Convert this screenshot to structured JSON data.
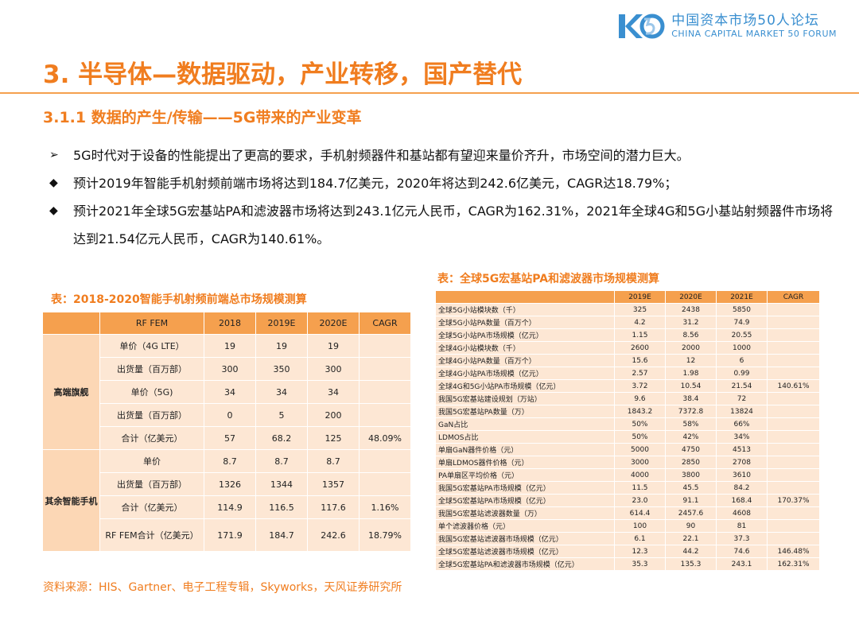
{
  "header": {
    "logo_mark": "K5",
    "logo_zh": "中国资本市场50人论坛",
    "logo_en": "CHINA CAPITAL MARKET 50 FORUM",
    "title": "3. 半导体—数据驱动，产业转移，国产替代",
    "section": "3.1.1 数据的产生/传输——5G带来的产业变革"
  },
  "bullets": [
    {
      "mark": "➢",
      "text": "5G时代对于设备的性能提出了更高的要求，手机射频器件和基站都有望迎来量价齐升，市场空间的潜力巨大。"
    },
    {
      "mark": "◆",
      "text": "预计2019年智能手机射频前端市场将达到184.7亿美元，2020年将达到242.6亿美元，CAGR达18.79%；"
    },
    {
      "mark": "◆",
      "text": "预计2021年全球5G宏基站PA和滤波器市场将达到243.1亿元人民币，CAGR为162.31%，2021年全球4G和5G小基站射频器件市场将达到21.54亿元人民币，CAGR为140.61%。"
    }
  ],
  "table1": {
    "caption": "表：2018-2020智能手机射频前端总市场规模测算",
    "headers": [
      "RF FEM",
      "2018",
      "2019E",
      "2020E",
      "CAGR"
    ],
    "group1": "高端旗舰",
    "group2": "其余智能手机",
    "rows": [
      {
        "label": "单价（4G LTE）",
        "v": [
          "19",
          "19",
          "19"
        ],
        "cagr": ""
      },
      {
        "label": "出货量（百万部）",
        "v": [
          "300",
          "350",
          "300"
        ],
        "cagr": ""
      },
      {
        "label": "单价（5G)",
        "v": [
          "34",
          "34",
          "34"
        ],
        "cagr": ""
      },
      {
        "label": "出货量（百万部）",
        "v": [
          "0",
          "5",
          "200"
        ],
        "cagr": ""
      },
      {
        "label": "合计（亿美元）",
        "v": [
          "57",
          "68.2",
          "125"
        ],
        "cagr": "48.09%"
      },
      {
        "label": "单价",
        "v": [
          "8.7",
          "8.7",
          "8.7"
        ],
        "cagr": ""
      },
      {
        "label": "出货量（百万部）",
        "v": [
          "1326",
          "1344",
          "1357"
        ],
        "cagr": ""
      },
      {
        "label": "合计（亿美元）",
        "v": [
          "114.9",
          "116.5",
          "117.6"
        ],
        "cagr": "1.16%"
      },
      {
        "label": "RF FEM合计（亿美元）",
        "v": [
          "171.9",
          "184.7",
          "242.6"
        ],
        "cagr": "18.79%"
      }
    ]
  },
  "table2": {
    "caption": "表：全球5G宏基站PA和滤波器市场规模测算",
    "headers": [
      "",
      "2019E",
      "2020E",
      "2021E",
      "CAGR"
    ],
    "rows": [
      [
        "全球5G小站模块数（千）",
        "325",
        "2438",
        "5850",
        ""
      ],
      [
        "全球5G小站PA数量（百万个）",
        "4.2",
        "31.2",
        "74.9",
        ""
      ],
      [
        "全球5G小站PA市场规模（亿元）",
        "1.15",
        "8.56",
        "20.55",
        ""
      ],
      [
        "全球4G小站模块数（千）",
        "2600",
        "2000",
        "1000",
        ""
      ],
      [
        "全球4G小站PA数量（百万个）",
        "15.6",
        "12",
        "6",
        ""
      ],
      [
        "全球4G小站PA市场规模（亿元）",
        "2.57",
        "1.98",
        "0.99",
        ""
      ],
      [
        "全球4G和5G小站PA市场规模（亿元）",
        "3.72",
        "10.54",
        "21.54",
        "140.61%"
      ],
      [
        "我国5G宏基站建设规划（万站）",
        "9.6",
        "38.4",
        "72",
        ""
      ],
      [
        "我国5G宏基站PA数量（万）",
        "1843.2",
        "7372.8",
        "13824",
        ""
      ],
      [
        "GaN占比",
        "50%",
        "58%",
        "66%",
        ""
      ],
      [
        "LDMOS占比",
        "50%",
        "42%",
        "34%",
        ""
      ],
      [
        "单扇GaN器件价格（元）",
        "5000",
        "4750",
        "4513",
        ""
      ],
      [
        "单扇LDMOS器件价格（元）",
        "3000",
        "2850",
        "2708",
        ""
      ],
      [
        "PA单扇区平均价格（元）",
        "4000",
        "3800",
        "3610",
        ""
      ],
      [
        "我国5G宏基站PA市场规模（亿元）",
        "11.5",
        "45.5",
        "84.2",
        ""
      ],
      [
        "全球5G宏基站PA市场规模（亿元）",
        "23.0",
        "91.1",
        "168.4",
        "170.37%"
      ],
      [
        "我国5G宏基站滤波器数量（万）",
        "614.4",
        "2457.6",
        "4608",
        ""
      ],
      [
        "单个滤波器价格（元）",
        "100",
        "90",
        "81",
        ""
      ],
      [
        "我国5G宏基站滤波器市场规模（亿元）",
        "6.1",
        "22.1",
        "37.3",
        ""
      ],
      [
        "全球5G宏基站滤波器市场规模（亿元）",
        "12.3",
        "44.2",
        "74.6",
        "146.48%"
      ],
      [
        "全球5G宏基站PA和滤波器市场规模（亿元）",
        "35.3",
        "135.3",
        "243.1",
        "162.31%"
      ]
    ]
  },
  "source": "资料来源：HIS、Gartner、电子工程专辑，Skyworks，天风证券研究所",
  "colors": {
    "accent": "#f07d1f",
    "header_fill": "#f5a04e",
    "cell_fill": "#fde7d4",
    "logo_blue": "#3a8fd0"
  }
}
